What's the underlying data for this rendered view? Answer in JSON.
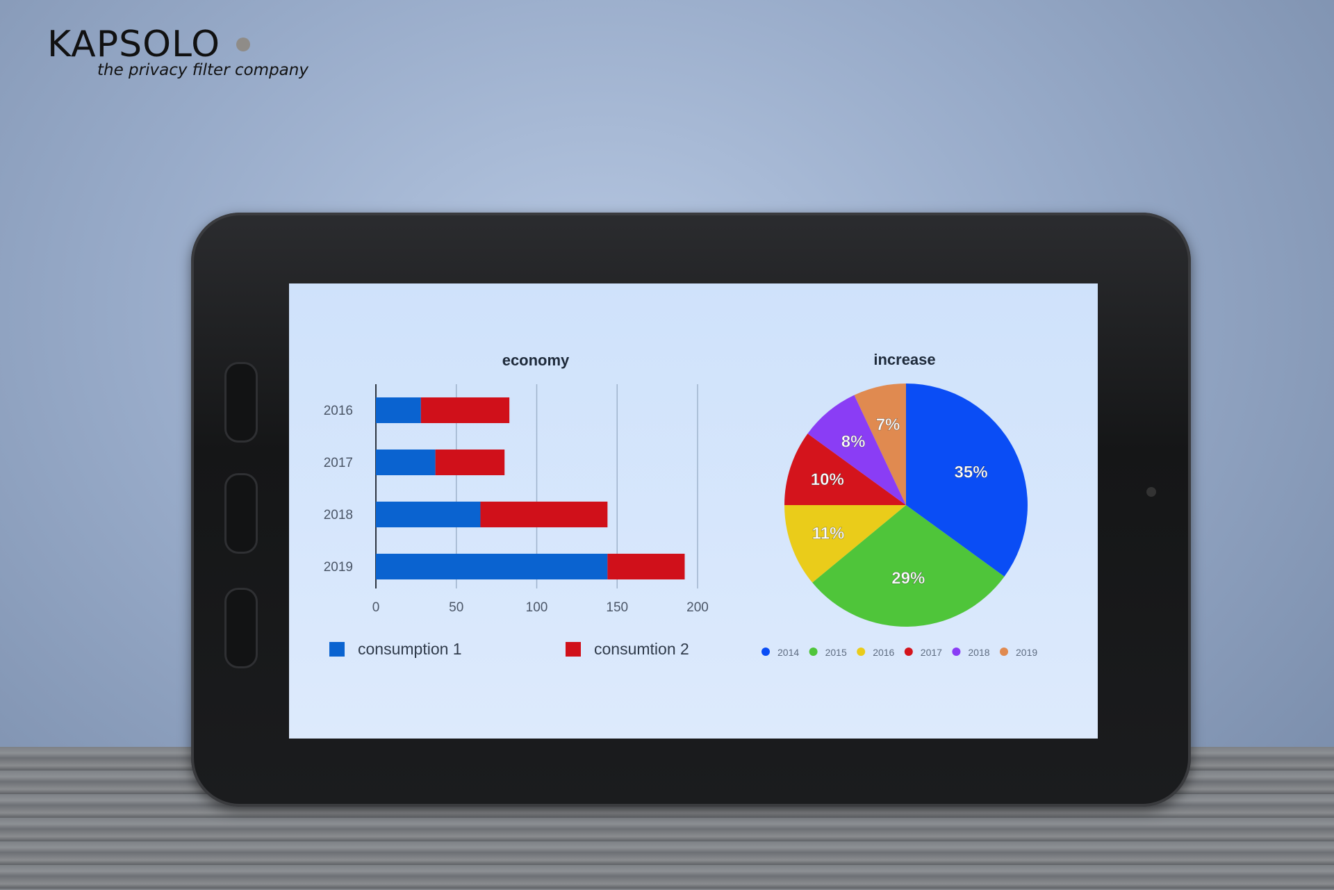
{
  "logo": {
    "name": "KAPSOLO",
    "tagline": "the privacy filter company"
  },
  "chart_data": [
    {
      "type": "bar",
      "orientation": "horizontal",
      "stacked": true,
      "title": "economy",
      "categories": [
        "2016",
        "2017",
        "2018",
        "2019"
      ],
      "series": [
        {
          "name": "consumption  1",
          "color": "#0a63d0",
          "values": [
            28,
            37,
            65,
            144
          ]
        },
        {
          "name": "consumtion 2",
          "color": "#d0101a",
          "values": [
            55,
            43,
            79,
            48
          ]
        }
      ],
      "xlim": [
        0,
        200
      ],
      "xticks": [
        "0",
        "50",
        "100",
        "150",
        "200"
      ],
      "grid": true,
      "legend": "bottom"
    },
    {
      "type": "pie",
      "title": "increase",
      "labels": [
        "2014",
        "2015",
        "2016",
        "2017",
        "2018",
        "2019"
      ],
      "values": [
        35,
        29,
        11,
        10,
        8,
        7
      ],
      "data_labels": [
        "35%",
        "29%",
        "11%",
        "10%",
        "8%",
        "7%"
      ],
      "colors": [
        "#0a4df5",
        "#4fc53a",
        "#eacc1a",
        "#d4141c",
        "#8a3df5",
        "#e08a50"
      ],
      "legend": "bottom"
    }
  ]
}
